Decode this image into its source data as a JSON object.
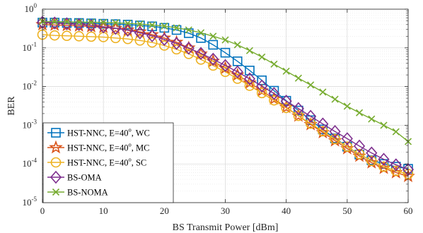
{
  "chart_data": {
    "type": "line",
    "xlabel": "BS Transmit Power [dBm]",
    "ylabel": "BER",
    "xlim": [
      0,
      60
    ],
    "ylim": [
      1e-05,
      1
    ],
    "yscale": "log",
    "grid": true,
    "legend_position": "bottom-left",
    "x_ticks": [
      "0",
      "10",
      "20",
      "30",
      "40",
      "50",
      "60"
    ],
    "y_ticks": [
      {
        "base": "10",
        "exp": "0"
      },
      {
        "base": "10",
        "exp": "-1"
      },
      {
        "base": "10",
        "exp": "-2"
      },
      {
        "base": "10",
        "exp": "-3"
      },
      {
        "base": "10",
        "exp": "-4"
      },
      {
        "base": "10",
        "exp": "-5"
      }
    ],
    "x": [
      0,
      2,
      4,
      6,
      8,
      10,
      12,
      14,
      16,
      18,
      20,
      22,
      24,
      26,
      28,
      30,
      32,
      34,
      36,
      38,
      40,
      42,
      44,
      46,
      48,
      50,
      52,
      54,
      56,
      58,
      60
    ],
    "series": [
      {
        "name": "HST-NNC, E=40",
        "sup": "o",
        "suffix": ", WC",
        "color": "#0072BD",
        "marker": "square",
        "values": [
          0.45,
          0.45,
          0.44,
          0.44,
          0.43,
          0.42,
          0.41,
          0.4,
          0.38,
          0.36,
          0.33,
          0.29,
          0.24,
          0.18,
          0.12,
          0.075,
          0.045,
          0.026,
          0.0145,
          0.0078,
          0.0043,
          0.0024,
          0.00135,
          0.00078,
          0.00046,
          0.00028,
          0.000175,
          0.000125,
          0.0001,
          8.5e-05,
          7.5e-05
        ]
      },
      {
        "name": "HST-NNC, E=40",
        "sup": "o",
        "suffix": ", MC",
        "color": "#D95319",
        "marker": "star",
        "values": [
          0.4,
          0.39,
          0.38,
          0.37,
          0.355,
          0.34,
          0.32,
          0.29,
          0.26,
          0.22,
          0.18,
          0.14,
          0.1,
          0.07,
          0.045,
          0.03,
          0.02,
          0.0125,
          0.0078,
          0.0048,
          0.0029,
          0.00175,
          0.00105,
          0.00065,
          0.0004,
          0.00025,
          0.00016,
          0.000108,
          7.8e-05,
          6e-05,
          4.8e-05
        ]
      },
      {
        "name": "HST-NNC, E=40",
        "sup": "o",
        "suffix": ", SC",
        "color": "#EDB120",
        "marker": "circle",
        "values": [
          0.22,
          0.21,
          0.205,
          0.2,
          0.195,
          0.19,
          0.18,
          0.17,
          0.155,
          0.138,
          0.115,
          0.092,
          0.07,
          0.05,
          0.035,
          0.024,
          0.016,
          0.0105,
          0.0068,
          0.0044,
          0.0028,
          0.00175,
          0.0011,
          0.0007,
          0.00044,
          0.00028,
          0.00018,
          0.00012,
          8.5e-05,
          6.6e-05,
          5.5e-05
        ]
      },
      {
        "name": "BS-OMA",
        "sup": "",
        "suffix": "",
        "color": "#7E2F8E",
        "marker": "diamond",
        "values": [
          0.46,
          0.44,
          0.42,
          0.4,
          0.38,
          0.35,
          0.32,
          0.285,
          0.245,
          0.205,
          0.165,
          0.13,
          0.098,
          0.072,
          0.051,
          0.035,
          0.024,
          0.0158,
          0.0103,
          0.0066,
          0.0042,
          0.0027,
          0.0017,
          0.00108,
          0.00069,
          0.00045,
          0.00029,
          0.000192,
          0.000132,
          9.5e-05,
          7.2e-05
        ]
      },
      {
        "name": "BS-NOMA",
        "sup": "",
        "suffix": "",
        "color": "#77AC30",
        "marker": "x",
        "values": [
          0.48,
          0.475,
          0.47,
          0.465,
          0.46,
          0.455,
          0.445,
          0.43,
          0.415,
          0.39,
          0.365,
          0.33,
          0.29,
          0.245,
          0.2,
          0.16,
          0.12,
          0.085,
          0.058,
          0.038,
          0.025,
          0.0165,
          0.011,
          0.0072,
          0.0047,
          0.0031,
          0.0021,
          0.00145,
          0.001,
          0.00068,
          0.00038
        ]
      }
    ]
  }
}
